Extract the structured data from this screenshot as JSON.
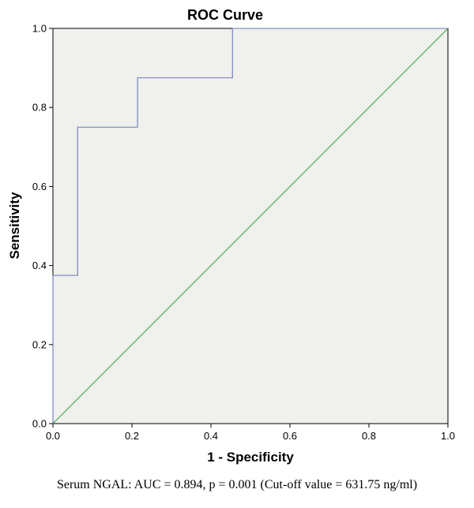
{
  "chart_data": {
    "type": "line",
    "title": "ROC Curve",
    "xlabel": "1 - Specificity",
    "ylabel": "Sensitivity",
    "xlim": [
      0,
      1
    ],
    "ylim": [
      0,
      1
    ],
    "x_ticks": [
      "0.0",
      "0.2",
      "0.4",
      "0.6",
      "0.8",
      "1.0"
    ],
    "y_ticks": [
      "0.0",
      "0.2",
      "0.4",
      "0.6",
      "0.8",
      "1.0"
    ],
    "grid": false,
    "background_color": "#f0f0ec",
    "series": [
      {
        "color": "#6d78b8",
        "step": true,
        "x": [
          0,
          0,
          0.0625,
          0.0625,
          0.2143,
          0.2143,
          0.4545,
          0.4545,
          1
        ],
        "y": [
          0,
          0.375,
          0.375,
          0.75,
          0.75,
          0.875,
          0.875,
          1,
          1
        ]
      },
      {
        "color": "#3aa64a",
        "x": [
          0,
          1
        ],
        "y": [
          0,
          1
        ]
      }
    ]
  },
  "caption": "Serum NGAL: AUC = 0.894, p = 0.001 (Cut-off value  = 631.75 ng/ml)"
}
